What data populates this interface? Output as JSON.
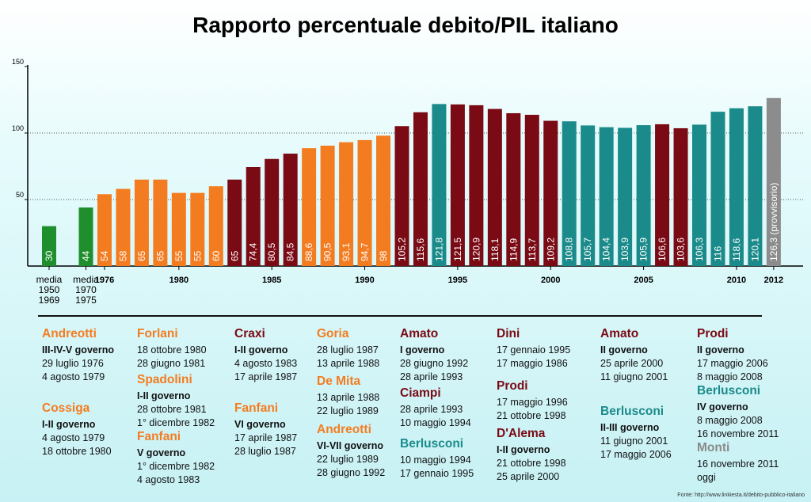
{
  "title": "Rapporto percentuale debito/PIL italiano",
  "source": "Fonte: http://www.linkiesta.it/debito-pubblico-italiano",
  "colors": {
    "green": "#1f8f2e",
    "orange": "#f47c20",
    "maroon": "#7a0a14",
    "teal": "#1b8a8a",
    "grey": "#8c8c8c"
  },
  "chart_data": {
    "type": "bar",
    "ylim": [
      0,
      150
    ],
    "yticks": [
      50,
      100,
      150
    ],
    "grid": "dotted at 50 and 100",
    "bars": [
      {
        "label": "30",
        "value": 30,
        "color": "green"
      },
      {
        "label": "44",
        "value": 44,
        "color": "green"
      },
      {
        "label": "54",
        "value": 54,
        "color": "orange"
      },
      {
        "label": "58",
        "value": 58,
        "color": "orange"
      },
      {
        "label": "65",
        "value": 65,
        "color": "orange"
      },
      {
        "label": "65",
        "value": 65,
        "color": "orange"
      },
      {
        "label": "55",
        "value": 55,
        "color": "orange"
      },
      {
        "label": "55",
        "value": 55,
        "color": "orange"
      },
      {
        "label": "60",
        "value": 60,
        "color": "orange"
      },
      {
        "label": "65",
        "value": 65,
        "color": "maroon"
      },
      {
        "label": "74,4",
        "value": 74.4,
        "color": "maroon"
      },
      {
        "label": "80,5",
        "value": 80.5,
        "color": "maroon"
      },
      {
        "label": "84,5",
        "value": 84.5,
        "color": "maroon"
      },
      {
        "label": "88,6",
        "value": 88.6,
        "color": "orange"
      },
      {
        "label": "90,5",
        "value": 90.5,
        "color": "orange"
      },
      {
        "label": "93,1",
        "value": 93.1,
        "color": "orange"
      },
      {
        "label": "94,7",
        "value": 94.7,
        "color": "orange"
      },
      {
        "label": "98",
        "value": 98,
        "color": "orange"
      },
      {
        "label": "105,2",
        "value": 105.2,
        "color": "maroon"
      },
      {
        "label": "115,6",
        "value": 115.6,
        "color": "maroon"
      },
      {
        "label": "121,8",
        "value": 121.8,
        "color": "teal"
      },
      {
        "label": "121,5",
        "value": 121.5,
        "color": "maroon"
      },
      {
        "label": "120,9",
        "value": 120.9,
        "color": "maroon"
      },
      {
        "label": "118,1",
        "value": 118.1,
        "color": "maroon"
      },
      {
        "label": "114,9",
        "value": 114.9,
        "color": "maroon"
      },
      {
        "label": "113,7",
        "value": 113.7,
        "color": "maroon"
      },
      {
        "label": "109,2",
        "value": 109.2,
        "color": "maroon"
      },
      {
        "label": "108,8",
        "value": 108.8,
        "color": "teal"
      },
      {
        "label": "105,7",
        "value": 105.7,
        "color": "teal"
      },
      {
        "label": "104,4",
        "value": 104.4,
        "color": "teal"
      },
      {
        "label": "103,9",
        "value": 103.9,
        "color": "teal"
      },
      {
        "label": "105,9",
        "value": 105.9,
        "color": "teal"
      },
      {
        "label": "106,6",
        "value": 106.6,
        "color": "maroon"
      },
      {
        "label": "103,6",
        "value": 103.6,
        "color": "maroon"
      },
      {
        "label": "106,3",
        "value": 106.3,
        "color": "teal"
      },
      {
        "label": "116",
        "value": 116,
        "color": "teal"
      },
      {
        "label": "118,6",
        "value": 118.6,
        "color": "teal"
      },
      {
        "label": "120,1",
        "value": 120.1,
        "color": "teal"
      },
      {
        "label": "126,3 (provvisorio)",
        "value": 126.3,
        "color": "grey"
      }
    ],
    "xlabels": [
      {
        "bar": 0,
        "lines": [
          "media",
          "1950",
          "1969"
        ]
      },
      {
        "bar": 1,
        "lines": [
          "media",
          "1970",
          "1975"
        ]
      },
      {
        "bar": 2,
        "lines": [
          "1976"
        ],
        "bold": true
      },
      {
        "bar": 6,
        "lines": [
          "1980"
        ],
        "bold": true
      },
      {
        "bar": 11,
        "lines": [
          "1985"
        ],
        "bold": true
      },
      {
        "bar": 16,
        "lines": [
          "1990"
        ],
        "bold": true
      },
      {
        "bar": 21,
        "lines": [
          "1995"
        ],
        "bold": true
      },
      {
        "bar": 26,
        "lines": [
          "2000"
        ],
        "bold": true
      },
      {
        "bar": 31,
        "lines": [
          "2005"
        ],
        "bold": true
      },
      {
        "bar": 36,
        "lines": [
          "2010"
        ],
        "bold": true
      },
      {
        "bar": 38,
        "lines": [
          "2012"
        ],
        "bold": true
      }
    ]
  },
  "governments": [
    {
      "name": "Andreotti",
      "color": "orange",
      "gov": "III-IV-V governo",
      "dates": [
        "29 luglio 1976",
        "4 agosto 1979"
      ]
    },
    {
      "name": "Cossiga",
      "color": "orange",
      "gov": "I-II governo",
      "dates": [
        "4 agosto 1979",
        "18 ottobre 1980"
      ]
    },
    {
      "name": "Forlani",
      "color": "orange",
      "gov": "",
      "dates": [
        "18 ottobre 1980",
        "28 giugno 1981"
      ]
    },
    {
      "name": "Spadolini",
      "color": "orange",
      "gov": "I-II governo",
      "dates": [
        "28 ottobre 1981",
        "1° dicembre 1982"
      ]
    },
    {
      "name": "Fanfani",
      "color": "orange",
      "gov": "V governo",
      "dates": [
        "1° dicembre 1982",
        "4 agosto 1983"
      ]
    },
    {
      "name": "Craxi",
      "color": "maroon",
      "gov": "I-II governo",
      "dates": [
        "4 agosto 1983",
        "17 aprile 1987"
      ]
    },
    {
      "name": "Fanfani",
      "color": "orange",
      "gov": "VI governo",
      "dates": [
        "17 aprile 1987",
        "28 luglio 1987"
      ]
    },
    {
      "name": "Goria",
      "color": "orange",
      "gov": "",
      "dates": [
        "28 luglio 1987",
        "13 aprile 1988"
      ]
    },
    {
      "name": "De Mita",
      "color": "orange",
      "gov": "",
      "dates": [
        "13 aprile 1988",
        "22 luglio 1989"
      ]
    },
    {
      "name": "Andreotti",
      "color": "orange",
      "gov": "VI-VII governo",
      "dates": [
        "22 luglio 1989",
        "28 giugno 1992"
      ]
    },
    {
      "name": "Amato",
      "color": "maroon",
      "gov": "I governo",
      "dates": [
        "28 giugno 1992",
        "28 aprile 1993"
      ]
    },
    {
      "name": "Ciampi",
      "color": "maroon",
      "gov": "",
      "dates": [
        "28 aprile 1993",
        "10 maggio 1994"
      ]
    },
    {
      "name": "Berlusconi",
      "color": "teal",
      "gov": "",
      "dates": [
        "10 maggio 1994",
        "17 gennaio 1995"
      ]
    },
    {
      "name": "Dini",
      "color": "maroon",
      "gov": "",
      "dates": [
        "17 gennaio 1995",
        "17 maggio 1986"
      ]
    },
    {
      "name": "Prodi",
      "color": "maroon",
      "gov": "",
      "dates": [
        "17 maggio 1996",
        "21 ottobre 1998"
      ]
    },
    {
      "name": "D'Alema",
      "color": "maroon",
      "gov": "I-II governo",
      "dates": [
        "21 ottobre 1998",
        "25 aprile 2000"
      ]
    },
    {
      "name": "Amato",
      "color": "maroon",
      "gov": "II governo",
      "dates": [
        "25 aprile 2000",
        "11 giugno 2001"
      ]
    },
    {
      "name": "Berlusconi",
      "color": "teal",
      "gov": "II-III governo",
      "dates": [
        "11 giugno 2001",
        "17 maggio 2006"
      ]
    },
    {
      "name": "Prodi",
      "color": "maroon",
      "gov": "II governo",
      "dates": [
        "17 maggio 2006",
        "8 maggio 2008"
      ]
    },
    {
      "name": "Berlusconi",
      "color": "teal",
      "gov": "IV governo",
      "dates": [
        "8 maggio 2008",
        "16 novembre 2011"
      ]
    },
    {
      "name": "Monti",
      "color": "grey",
      "gov": "",
      "dates": [
        "16 novembre 2011",
        "oggi"
      ]
    }
  ]
}
